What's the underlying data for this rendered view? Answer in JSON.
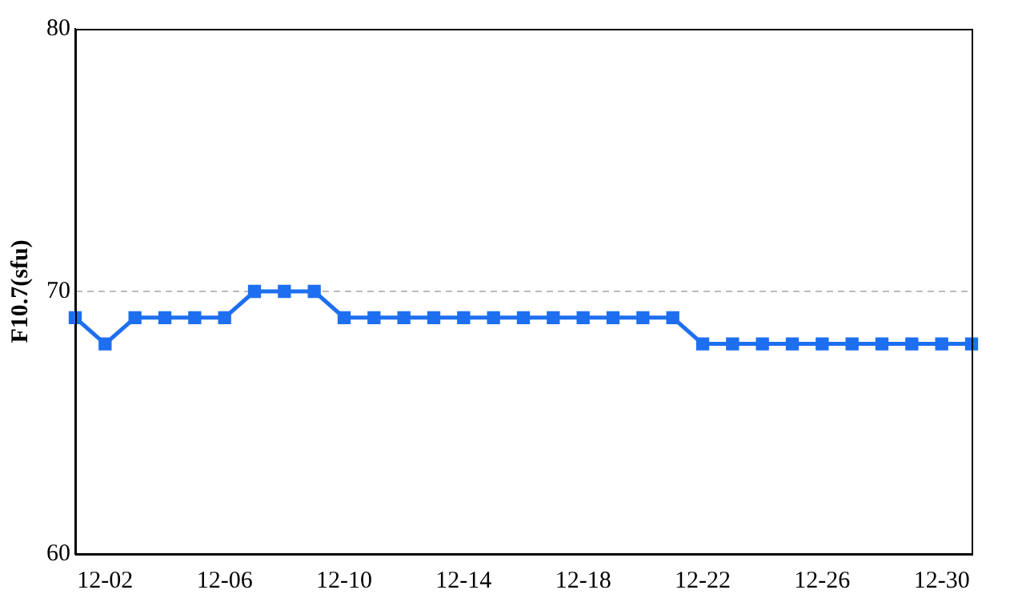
{
  "chart_data": {
    "type": "line",
    "ylabel": "F10.7(sfu)",
    "categories": [
      null,
      "12-02",
      null,
      null,
      null,
      "12-06",
      null,
      null,
      null,
      "12-10",
      null,
      null,
      null,
      "12-14",
      null,
      null,
      null,
      "12-18",
      null,
      null,
      null,
      "12-22",
      null,
      null,
      null,
      "12-26",
      null,
      null,
      null,
      "12-30",
      null
    ],
    "series": [
      {
        "color": "#1e6ff0",
        "values": [
          69,
          68,
          69,
          69,
          69,
          69,
          70,
          70,
          70,
          69,
          69,
          69,
          69,
          69,
          69,
          69,
          69,
          69,
          69,
          69,
          69,
          68,
          68,
          68,
          68,
          68,
          68,
          68,
          68,
          68,
          68
        ]
      }
    ],
    "ylim": [
      60,
      80
    ],
    "yticks": [
      60,
      70,
      80
    ],
    "grid": "y",
    "marker": "square",
    "line_style": "solid",
    "legend": false
  }
}
